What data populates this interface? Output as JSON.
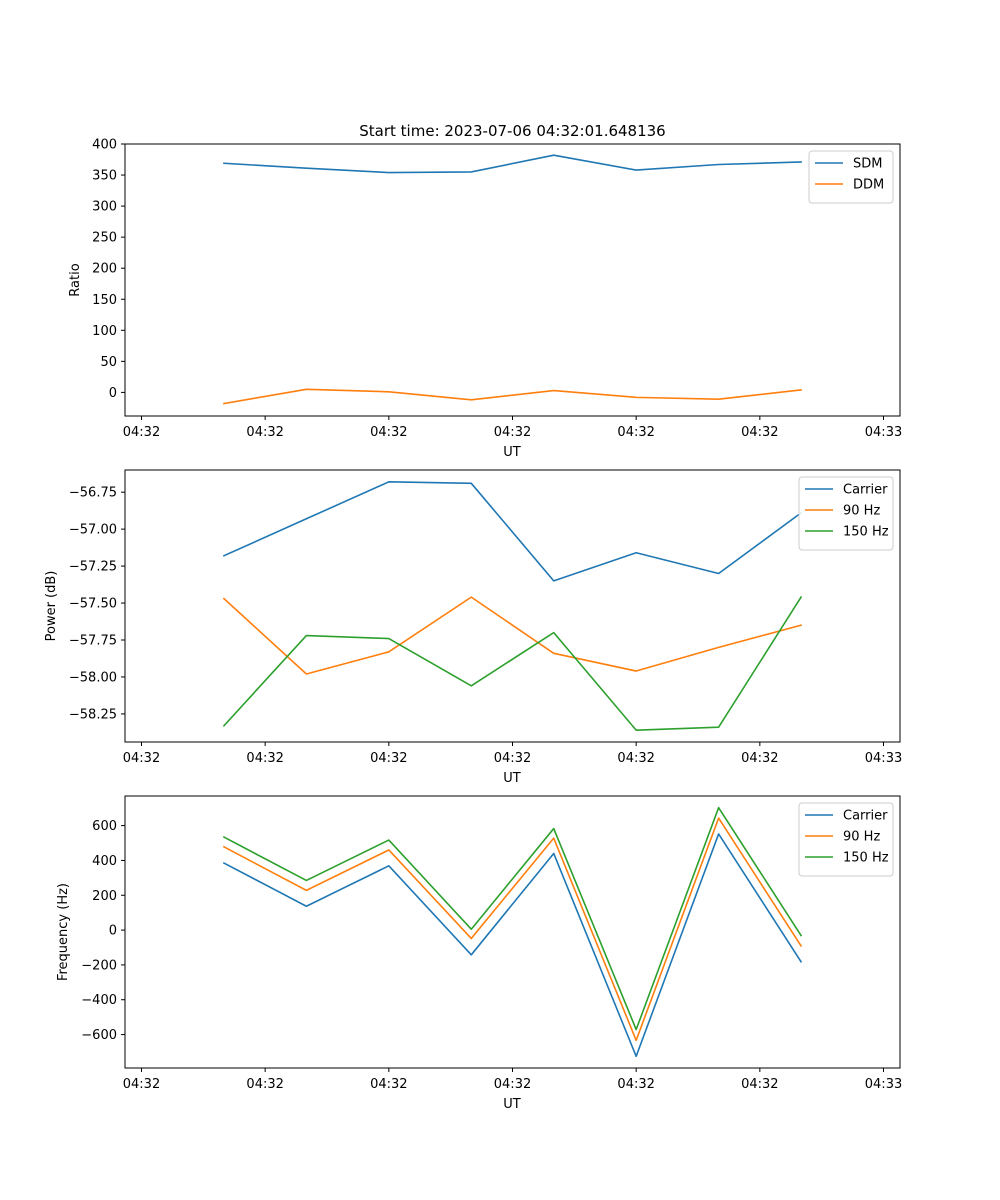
{
  "chart_data": [
    {
      "type": "line",
      "title": "Start time: 2023-07-06 04:32:01.648136",
      "xlabel": "UT",
      "ylabel": "Ratio",
      "x": [
        0.5,
        1.0,
        1.5,
        2.0,
        2.5,
        3.0,
        3.5,
        4.0
      ],
      "xlim": [
        -0.1,
        4.6
      ],
      "xticks": [
        0,
        0.75,
        1.5,
        2.25,
        3.0,
        3.75,
        4.5
      ],
      "xtick_labels": [
        "04:32",
        "04:32",
        "04:32",
        "04:32",
        "04:32",
        "04:32",
        "04:33"
      ],
      "ylim": [
        -38,
        400
      ],
      "yticks": [
        0,
        50,
        100,
        150,
        200,
        250,
        300,
        350,
        400
      ],
      "ytick_labels": [
        "0",
        "50",
        "100",
        "150",
        "200",
        "250",
        "300",
        "350",
        "400"
      ],
      "legend": "top-right",
      "series": [
        {
          "name": "SDM",
          "color": "#1f77b4",
          "values": [
            369,
            361,
            354,
            355,
            382,
            358,
            367,
            371
          ]
        },
        {
          "name": "DDM",
          "color": "#ff7f0e",
          "values": [
            -18,
            5,
            1,
            -12,
            3,
            -8,
            -11,
            4
          ]
        }
      ]
    },
    {
      "type": "line",
      "title": "",
      "xlabel": "UT",
      "ylabel": "Power (dB)",
      "x": [
        0.5,
        1.0,
        1.5,
        2.0,
        2.5,
        3.0,
        3.5,
        4.0
      ],
      "xlim": [
        -0.1,
        4.6
      ],
      "xticks": [
        0,
        0.75,
        1.5,
        2.25,
        3.0,
        3.75,
        4.5
      ],
      "xtick_labels": [
        "04:32",
        "04:32",
        "04:32",
        "04:32",
        "04:32",
        "04:32",
        "04:33"
      ],
      "ylim": [
        -58.44,
        -56.6
      ],
      "yticks": [
        -58.25,
        -58.0,
        -57.75,
        -57.5,
        -57.25,
        -57.0,
        -56.75
      ],
      "ytick_labels": [
        "−58.25",
        "−58.00",
        "−57.75",
        "−57.50",
        "−57.25",
        "−57.00",
        "−56.75"
      ],
      "legend": "top-right",
      "series": [
        {
          "name": "Carrier",
          "color": "#1f77b4",
          "values": [
            -57.18,
            -56.93,
            -56.68,
            -56.69,
            -57.35,
            -57.16,
            -57.3,
            -56.89
          ]
        },
        {
          "name": "90 Hz",
          "color": "#ff7f0e",
          "values": [
            -57.47,
            -57.98,
            -57.83,
            -57.46,
            -57.84,
            -57.96,
            -57.8,
            -57.65
          ]
        },
        {
          "name": "150 Hz",
          "color": "#2ca02c",
          "values": [
            -58.33,
            -57.72,
            -57.74,
            -58.06,
            -57.7,
            -58.36,
            -58.34,
            -57.46
          ]
        }
      ]
    },
    {
      "type": "line",
      "title": "",
      "xlabel": "UT",
      "ylabel": "Frequency (Hz)",
      "x": [
        0.5,
        1.0,
        1.5,
        2.0,
        2.5,
        3.0,
        3.5,
        4.0
      ],
      "xlim": [
        -0.1,
        4.6
      ],
      "xticks": [
        0,
        0.75,
        1.5,
        2.25,
        3.0,
        3.75,
        4.5
      ],
      "xtick_labels": [
        "04:32",
        "04:32",
        "04:32",
        "04:32",
        "04:32",
        "04:32",
        "04:33"
      ],
      "ylim": [
        -792,
        770
      ],
      "yticks": [
        -600,
        -400,
        -200,
        0,
        200,
        400,
        600
      ],
      "ytick_labels": [
        "−600",
        "−400",
        "−200",
        "0",
        "200",
        "400",
        "600"
      ],
      "legend": "top-right",
      "series": [
        {
          "name": "Carrier",
          "color": "#1f77b4",
          "values": [
            385,
            137,
            369,
            -142,
            440,
            -725,
            552,
            -182
          ]
        },
        {
          "name": "90 Hz",
          "color": "#ff7f0e",
          "values": [
            478,
            228,
            460,
            -48,
            528,
            -633,
            643,
            -91
          ]
        },
        {
          "name": "150 Hz",
          "color": "#2ca02c",
          "values": [
            534,
            285,
            517,
            5,
            583,
            -571,
            703,
            -31
          ]
        }
      ]
    }
  ]
}
